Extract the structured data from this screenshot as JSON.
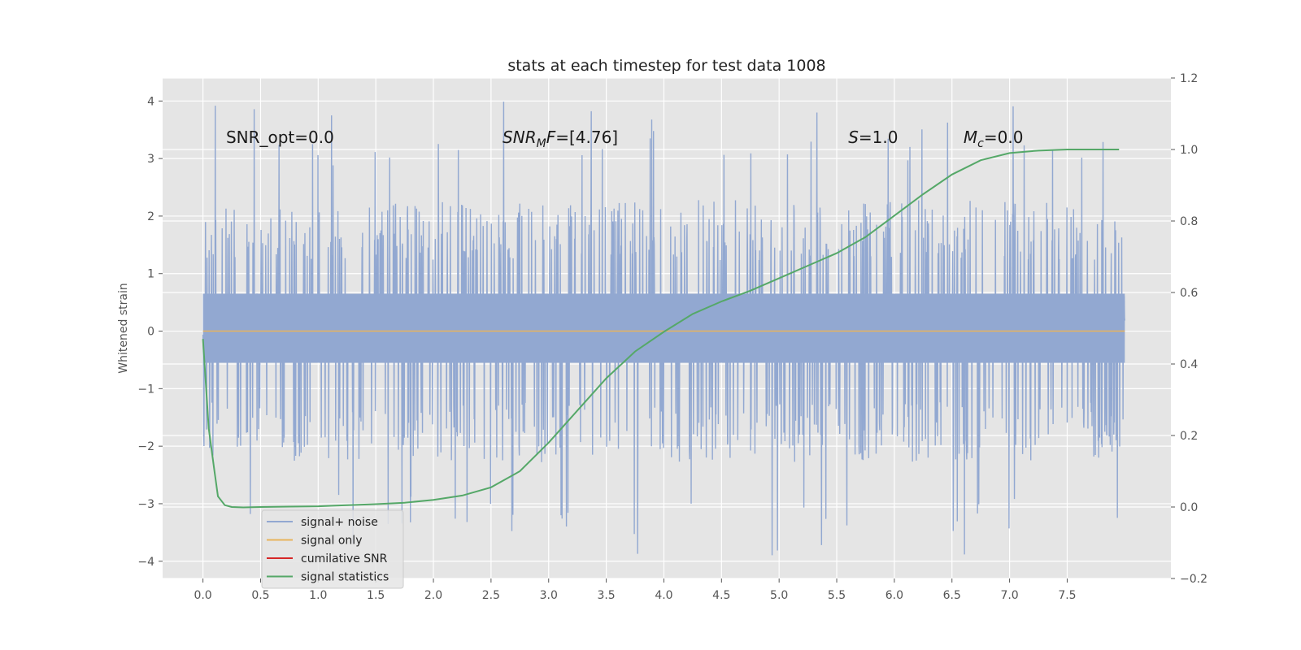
{
  "chart_data": {
    "type": "line",
    "title": "stats at each timestep for test data 1008",
    "ylabel": "Whitened strain",
    "y2label": "",
    "xlim": [
      -0.35,
      8.4
    ],
    "ylim": [
      -4.3,
      4.4
    ],
    "y2lim": [
      -0.2,
      1.2
    ],
    "grid": true,
    "x_ticks": [
      0.0,
      0.5,
      1.0,
      1.5,
      2.0,
      2.5,
      3.0,
      3.5,
      4.0,
      4.5,
      5.0,
      5.5,
      6.0,
      6.5,
      7.0,
      7.5
    ],
    "x_tick_labels": [
      "0.0",
      "0.5",
      "1.0",
      "1.5",
      "2.0",
      "2.5",
      "3.0",
      "3.5",
      "4.0",
      "4.5",
      "5.0",
      "5.5",
      "6.0",
      "6.5",
      "7.0",
      "7.5"
    ],
    "y_ticks": [
      4,
      3,
      2,
      1,
      0,
      -1,
      -2,
      -3,
      -4
    ],
    "y_tick_labels": [
      "4",
      "3",
      "2",
      "1",
      "0",
      "−1",
      "−2",
      "−3",
      "−4"
    ],
    "y2_ticks": [
      1.2,
      1.0,
      0.8,
      0.6,
      0.4,
      0.2,
      0.0,
      -0.2
    ],
    "y2_tick_labels": [
      "1.2",
      "1.0",
      "0.8",
      "0.6",
      "0.4",
      "0.2",
      "0.0",
      "−0.2"
    ],
    "annotations": [
      {
        "id": "snr-opt",
        "x": 0.2,
        "y": 3.2,
        "parts": [
          {
            "text": "SNR_opt=0.0",
            "italic": false
          }
        ]
      },
      {
        "id": "snr-mf",
        "x": 2.6,
        "y": 3.2,
        "parts": [
          {
            "text": "SNR",
            "italic": true
          },
          {
            "text": "M",
            "italic": true,
            "sub": true
          },
          {
            "text": "F",
            "italic": true
          },
          {
            "text": "=[4.76]",
            "italic": false
          }
        ]
      },
      {
        "id": "s-value",
        "x": 5.6,
        "y": 3.2,
        "parts": [
          {
            "text": "S",
            "italic": true
          },
          {
            "text": "=1.0",
            "italic": false
          }
        ]
      },
      {
        "id": "mc-value",
        "x": 6.6,
        "y": 3.2,
        "parts": [
          {
            "text": "M",
            "italic": true
          },
          {
            "text": "c",
            "italic": true,
            "sub": true
          },
          {
            "text": "=0.0",
            "italic": false
          }
        ]
      }
    ],
    "series": [
      {
        "name": "signal+ noise",
        "axis": "left",
        "color": "#92a8d1",
        "style": "noise",
        "x_range": [
          0.0,
          8.0
        ],
        "band": [
          -0.55,
          0.65
        ],
        "typical_range": [
          -1.9,
          1.9
        ],
        "peak_range": [
          -3.9,
          4.0
        ]
      },
      {
        "name": "signal only",
        "axis": "left",
        "color": "#e8b45c",
        "x": [
          0.0,
          8.0
        ],
        "y": [
          0.0,
          0.0
        ]
      },
      {
        "name": "cumilative SNR",
        "axis": "left",
        "color": "#d62728",
        "x": [],
        "y": []
      },
      {
        "name": "signal statistics",
        "axis": "right",
        "color": "#55a868",
        "x": [
          0.0,
          0.05,
          0.1,
          0.13,
          0.19,
          0.25,
          0.35,
          0.5,
          0.75,
          1.0,
          1.25,
          1.5,
          1.75,
          2.0,
          2.25,
          2.5,
          2.75,
          3.0,
          3.25,
          3.5,
          3.75,
          4.0,
          4.25,
          4.5,
          4.75,
          5.0,
          5.25,
          5.5,
          5.75,
          6.0,
          6.25,
          6.5,
          6.75,
          7.0,
          7.25,
          7.5,
          7.75,
          7.95
        ],
        "y": [
          0.47,
          0.22,
          0.1,
          0.03,
          0.005,
          0.0,
          -0.001,
          0.0,
          0.001,
          0.002,
          0.005,
          0.008,
          0.012,
          0.02,
          0.032,
          0.055,
          0.1,
          0.18,
          0.27,
          0.36,
          0.435,
          0.49,
          0.54,
          0.575,
          0.605,
          0.64,
          0.675,
          0.71,
          0.755,
          0.815,
          0.875,
          0.93,
          0.97,
          0.99,
          0.997,
          1.0,
          1.0,
          1.0
        ]
      }
    ],
    "legend": {
      "location": "lower-left"
    }
  }
}
